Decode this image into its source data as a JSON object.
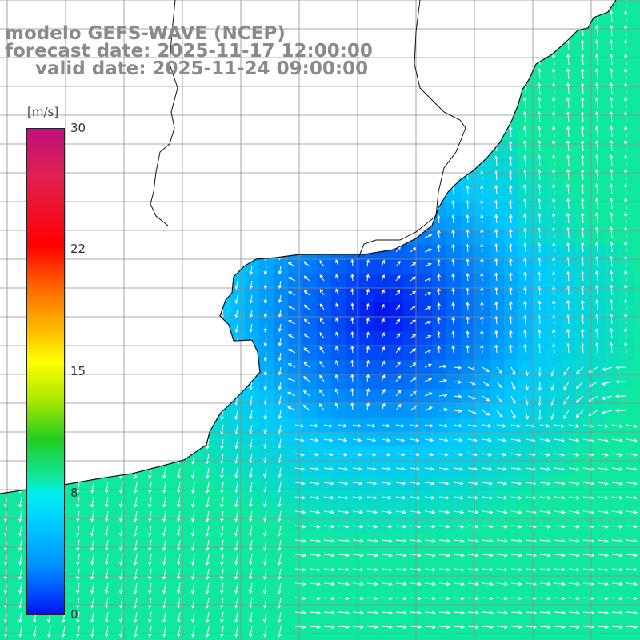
{
  "map": {
    "title_lines": [
      "modelo GEFS-WAVE (NCEP)",
      "forecast date: 2025-11-17 12:00:00",
      "valid date: 2025-11-24 09:00:00"
    ],
    "colorbar": {
      "unit": "[m/s]",
      "ticks": [
        "30",
        "22",
        "15",
        "8",
        "0"
      ],
      "tick_values": [
        30,
        22,
        15,
        8,
        0
      ],
      "range": [
        0,
        30
      ]
    },
    "colors": {
      "land": "#ffffff",
      "coast": "#111111",
      "grid": "#8c8c8c",
      "arrows": "#ffffff",
      "low_speed": "#0010ee",
      "mid_speed": "#00c8ff",
      "high_speed": "#10e8a0"
    }
  }
}
